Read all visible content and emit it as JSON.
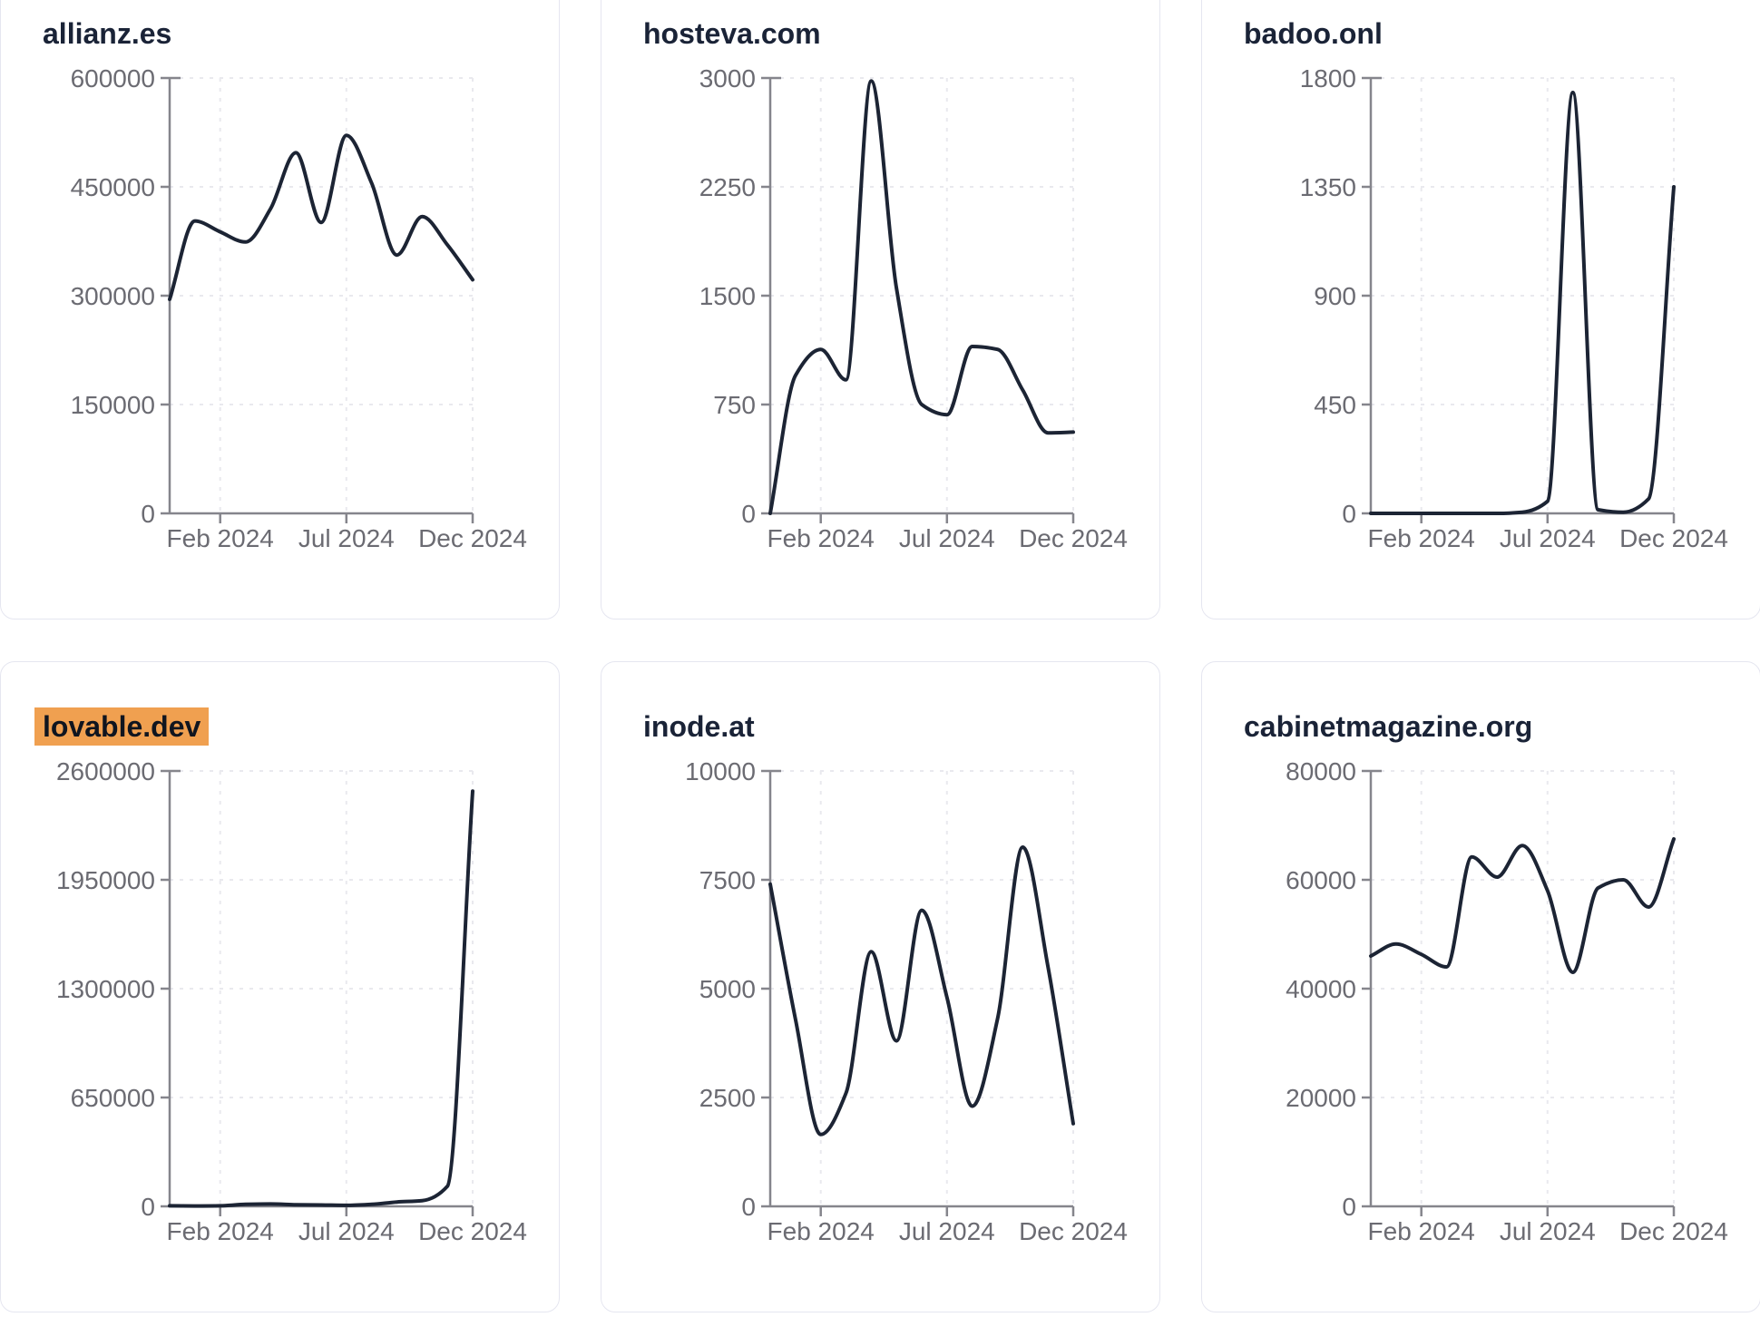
{
  "page_background": "#ffffff",
  "colors": {
    "line": "#1c2434",
    "title": "#1a2337",
    "tick_label": "#6b6b72",
    "axis": "#85858c",
    "grid": "#e9e9ee",
    "card_border": "#e5e6f0",
    "card_background": "#ffffff",
    "highlight_background": "#f0a050",
    "highlight_text": "#10151f"
  },
  "axis": {
    "x_tick_labels": [
      "Feb 2024",
      "Jul 2024",
      "Dec 2024"
    ],
    "x_tick_indices": [
      2,
      7,
      12
    ],
    "grid": true,
    "legend": "none"
  },
  "chart_data": [
    {
      "type": "line",
      "title": "allianz.es",
      "highlighted": false,
      "x": [
        "Dec 2023",
        "Jan 2024",
        "Feb 2024",
        "Mar 2024",
        "Apr 2024",
        "May 2024",
        "Jun 2024",
        "Jul 2024",
        "Aug 2024",
        "Sep 2024",
        "Oct 2024",
        "Nov 2024",
        "Dec 2024"
      ],
      "values": [
        295000,
        403000,
        388000,
        374000,
        420000,
        497000,
        401000,
        521000,
        455000,
        356000,
        409000,
        370000,
        322000
      ],
      "y_ticks": [
        0,
        150000,
        300000,
        450000,
        600000
      ],
      "ylim": [
        0,
        600000
      ],
      "x_tick_labels": [
        "Feb 2024",
        "Jul 2024",
        "Dec 2024"
      ]
    },
    {
      "type": "line",
      "title": "hosteva.com",
      "highlighted": false,
      "x": [
        "Dec 2023",
        "Jan 2024",
        "Feb 2024",
        "Mar 2024",
        "Apr 2024",
        "May 2024",
        "Jun 2024",
        "Jul 2024",
        "Aug 2024",
        "Sep 2024",
        "Oct 2024",
        "Nov 2024",
        "Dec 2024"
      ],
      "values": [
        0,
        950,
        1130,
        920,
        2980,
        1550,
        750,
        680,
        1150,
        1130,
        850,
        555,
        560
      ],
      "y_ticks": [
        0,
        750,
        1500,
        2250,
        3000
      ],
      "ylim": [
        0,
        3000
      ],
      "x_tick_labels": [
        "Feb 2024",
        "Jul 2024",
        "Dec 2024"
      ]
    },
    {
      "type": "line",
      "title": "badoo.onl",
      "highlighted": false,
      "x": [
        "Dec 2023",
        "Jan 2024",
        "Feb 2024",
        "Mar 2024",
        "Apr 2024",
        "May 2024",
        "Jun 2024",
        "Jul 2024",
        "Aug 2024",
        "Sep 2024",
        "Oct 2024",
        "Nov 2024",
        "Dec 2024"
      ],
      "values": [
        0,
        0,
        0,
        0,
        0,
        0,
        5,
        50,
        1740,
        15,
        5,
        60,
        1350
      ],
      "y_ticks": [
        0,
        450,
        900,
        1350,
        1800
      ],
      "ylim": [
        0,
        1800
      ],
      "x_tick_labels": [
        "Feb 2024",
        "Jul 2024",
        "Dec 2024"
      ]
    },
    {
      "type": "line",
      "title": "lovable.dev",
      "highlighted": true,
      "x": [
        "Dec 2023",
        "Jan 2024",
        "Feb 2024",
        "Mar 2024",
        "Apr 2024",
        "May 2024",
        "Jun 2024",
        "Jul 2024",
        "Aug 2024",
        "Sep 2024",
        "Oct 2024",
        "Nov 2024",
        "Dec 2024"
      ],
      "values": [
        3000,
        2000,
        3000,
        12000,
        14000,
        10000,
        8000,
        6000,
        12000,
        26000,
        34000,
        120000,
        2480000
      ],
      "y_ticks": [
        0,
        650000,
        1300000,
        1950000,
        2600000
      ],
      "ylim": [
        0,
        2600000
      ],
      "x_tick_labels": [
        "Feb 2024",
        "Jul 2024",
        "Dec 2024"
      ]
    },
    {
      "type": "line",
      "title": "inode.at",
      "highlighted": false,
      "x": [
        "Dec 2023",
        "Jan 2024",
        "Feb 2024",
        "Mar 2024",
        "Apr 2024",
        "May 2024",
        "Jun 2024",
        "Jul 2024",
        "Aug 2024",
        "Sep 2024",
        "Oct 2024",
        "Nov 2024",
        "Dec 2024"
      ],
      "values": [
        7400,
        4300,
        1650,
        2600,
        5850,
        3800,
        6800,
        4800,
        2300,
        4300,
        8250,
        5500,
        1900
      ],
      "y_ticks": [
        0,
        2500,
        5000,
        7500,
        10000
      ],
      "ylim": [
        0,
        10000
      ],
      "x_tick_labels": [
        "Feb 2024",
        "Jul 2024",
        "Dec 2024"
      ]
    },
    {
      "type": "line",
      "title": "cabinetmagazine.org",
      "highlighted": false,
      "x": [
        "Dec 2023",
        "Jan 2024",
        "Feb 2024",
        "Mar 2024",
        "Apr 2024",
        "May 2024",
        "Jun 2024",
        "Jul 2024",
        "Aug 2024",
        "Sep 2024",
        "Oct 2024",
        "Nov 2024",
        "Dec 2024"
      ],
      "values": [
        46000,
        48200,
        46300,
        44000,
        64200,
        60500,
        66300,
        58000,
        43000,
        58500,
        60000,
        55000,
        67500
      ],
      "y_ticks": [
        0,
        20000,
        40000,
        60000,
        80000
      ],
      "ylim": [
        0,
        80000
      ],
      "x_tick_labels": [
        "Feb 2024",
        "Jul 2024",
        "Dec 2024"
      ]
    }
  ]
}
